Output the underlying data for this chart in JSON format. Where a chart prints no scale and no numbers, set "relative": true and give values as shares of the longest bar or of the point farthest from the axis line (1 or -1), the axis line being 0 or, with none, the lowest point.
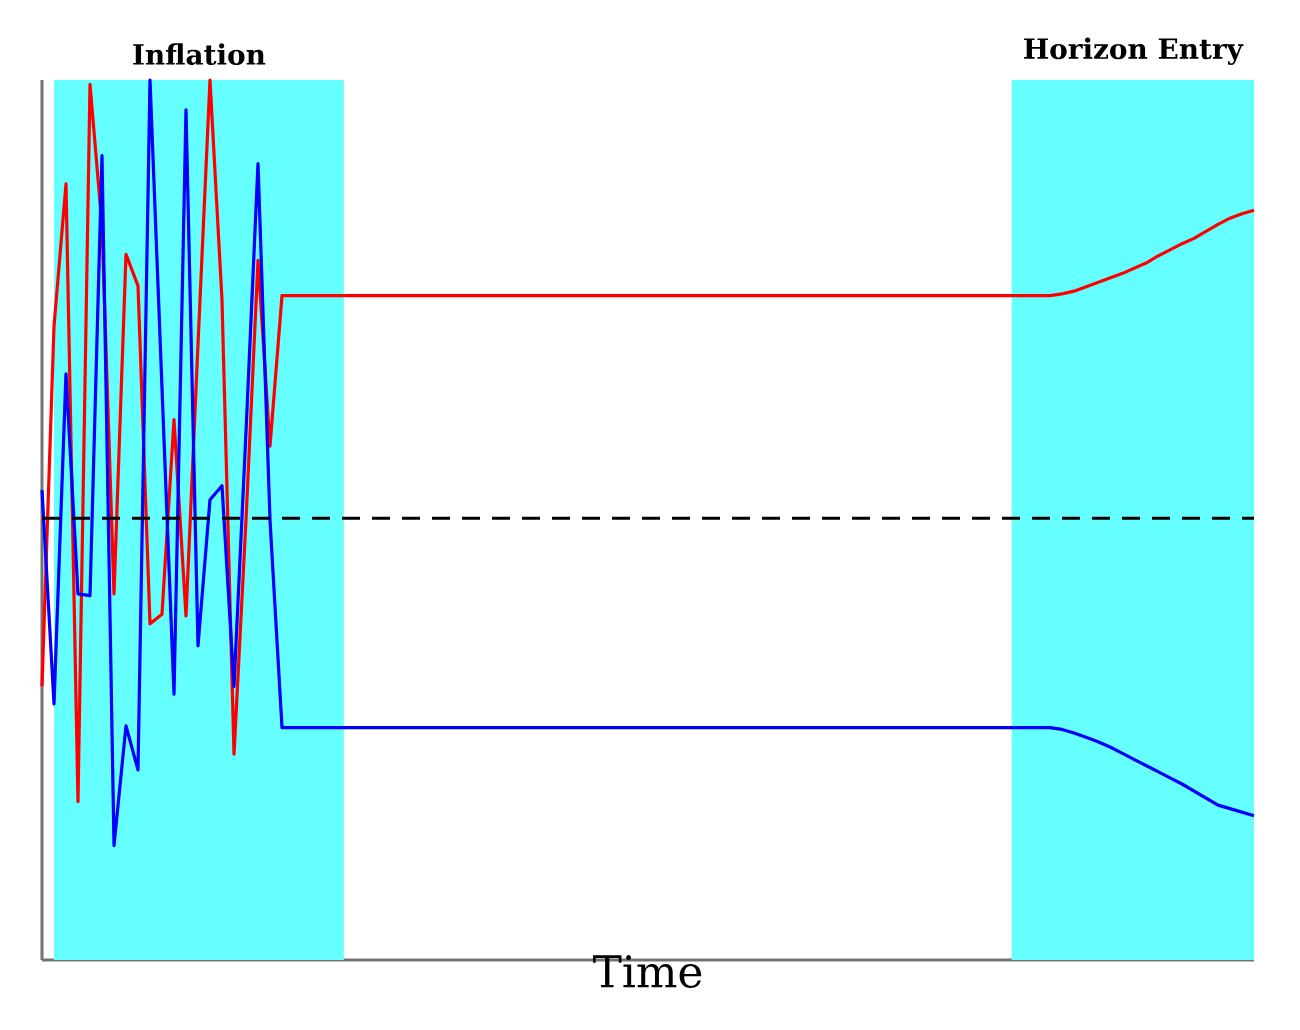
{
  "chart_data": {
    "type": "line",
    "relative": true,
    "xlabel": "Time",
    "tick_labels": false,
    "categories": [
      null,
      null,
      null,
      null,
      null,
      null,
      null,
      null,
      null,
      null,
      null,
      null,
      null,
      null,
      null,
      null,
      null,
      null,
      null,
      null,
      null,
      null,
      null,
      null,
      null,
      null,
      null,
      null,
      null,
      null,
      null,
      null,
      null,
      null,
      null,
      null,
      null,
      null,
      null,
      null,
      null,
      null,
      null,
      null,
      null,
      null,
      null,
      null,
      null,
      null,
      null,
      null,
      null,
      null,
      null,
      null,
      null,
      null,
      null,
      null,
      null,
      null,
      null,
      null,
      null,
      null,
      null,
      null,
      null,
      null,
      null,
      null,
      null,
      null,
      null,
      null,
      null,
      null,
      null,
      null,
      null,
      null,
      null,
      null,
      null,
      null,
      null,
      null,
      null,
      null,
      null,
      null,
      null,
      null,
      null,
      null,
      null,
      null,
      null,
      null,
      null,
      null
    ],
    "series": [
      {
        "color": "#ff0000",
        "values": [
          0.311,
          0.72,
          0.882,
          0.18,
          0.995,
          0.834,
          0.416,
          0.802,
          0.766,
          0.382,
          0.393,
          0.614,
          0.391,
          0.7,
          1.0,
          0.75,
          0.234,
          0.5,
          0.795,
          0.584,
          0.755,
          0.755,
          0.755,
          0.755,
          0.755,
          0.755,
          0.755,
          0.755,
          0.755,
          0.755,
          0.755,
          0.755,
          0.755,
          0.755,
          0.755,
          0.755,
          0.755,
          0.755,
          0.755,
          0.755,
          0.755,
          0.755,
          0.755,
          0.755,
          0.755,
          0.755,
          0.755,
          0.755,
          0.755,
          0.755,
          0.755,
          0.755,
          0.755,
          0.755,
          0.755,
          0.755,
          0.755,
          0.755,
          0.755,
          0.755,
          0.755,
          0.755,
          0.755,
          0.755,
          0.755,
          0.755,
          0.755,
          0.755,
          0.755,
          0.755,
          0.755,
          0.755,
          0.755,
          0.755,
          0.755,
          0.755,
          0.755,
          0.755,
          0.755,
          0.755,
          0.755,
          0.755,
          0.755,
          0.755,
          0.755,
          0.757,
          0.76,
          0.765,
          0.77,
          0.775,
          0.78,
          0.786,
          0.792,
          0.8,
          0.807,
          0.814,
          0.82,
          0.828,
          0.836,
          0.843,
          0.848,
          0.852
        ]
      },
      {
        "color": "#0000ff",
        "values": [
          0.534,
          0.291,
          0.666,
          0.416,
          0.414,
          0.914,
          0.13,
          0.266,
          0.216,
          1.0,
          0.65,
          0.302,
          0.966,
          0.357,
          0.523,
          0.539,
          0.311,
          0.6,
          0.905,
          0.5,
          0.264,
          0.264,
          0.264,
          0.264,
          0.264,
          0.264,
          0.264,
          0.264,
          0.264,
          0.264,
          0.264,
          0.264,
          0.264,
          0.264,
          0.264,
          0.264,
          0.264,
          0.264,
          0.264,
          0.264,
          0.264,
          0.264,
          0.264,
          0.264,
          0.264,
          0.264,
          0.264,
          0.264,
          0.264,
          0.264,
          0.264,
          0.264,
          0.264,
          0.264,
          0.264,
          0.264,
          0.264,
          0.264,
          0.264,
          0.264,
          0.264,
          0.264,
          0.264,
          0.264,
          0.264,
          0.264,
          0.264,
          0.264,
          0.264,
          0.264,
          0.264,
          0.264,
          0.264,
          0.264,
          0.264,
          0.264,
          0.264,
          0.264,
          0.264,
          0.264,
          0.264,
          0.264,
          0.264,
          0.264,
          0.264,
          0.262,
          0.258,
          0.253,
          0.248,
          0.242,
          0.235,
          0.228,
          0.221,
          0.214,
          0.207,
          0.2,
          0.192,
          0.184,
          0.176,
          0.172,
          0.168,
          0.164
        ]
      },
      {
        "color": "#000000",
        "line_style": "dashed",
        "values": [
          0.502,
          0.502,
          0.502,
          0.502,
          0.502,
          0.502,
          0.502,
          0.502,
          0.502,
          0.502,
          0.502,
          0.502,
          0.502,
          0.502,
          0.502,
          0.502,
          0.502,
          0.502,
          0.502,
          0.502,
          0.502,
          0.502,
          0.502,
          0.502,
          0.502,
          0.502,
          0.502,
          0.502,
          0.502,
          0.502,
          0.502,
          0.502,
          0.502,
          0.502,
          0.502,
          0.502,
          0.502,
          0.502,
          0.502,
          0.502,
          0.502,
          0.502,
          0.502,
          0.502,
          0.502,
          0.502,
          0.502,
          0.502,
          0.502,
          0.502,
          0.502,
          0.502,
          0.502,
          0.502,
          0.502,
          0.502,
          0.502,
          0.502,
          0.502,
          0.502,
          0.502,
          0.502,
          0.502,
          0.502,
          0.502,
          0.502,
          0.502,
          0.502,
          0.502,
          0.502,
          0.502,
          0.502,
          0.502,
          0.502,
          0.502,
          0.502,
          0.502,
          0.502,
          0.502,
          0.502,
          0.502,
          0.502,
          0.502,
          0.502,
          0.502,
          0.502,
          0.502,
          0.502,
          0.502,
          0.502,
          0.502,
          0.502,
          0.502,
          0.502,
          0.502,
          0.502,
          0.502,
          0.502,
          0.502,
          0.502,
          0.502,
          0.502
        ]
      }
    ],
    "annotations": [
      "Inflation",
      "Horizon Entry"
    ]
  }
}
